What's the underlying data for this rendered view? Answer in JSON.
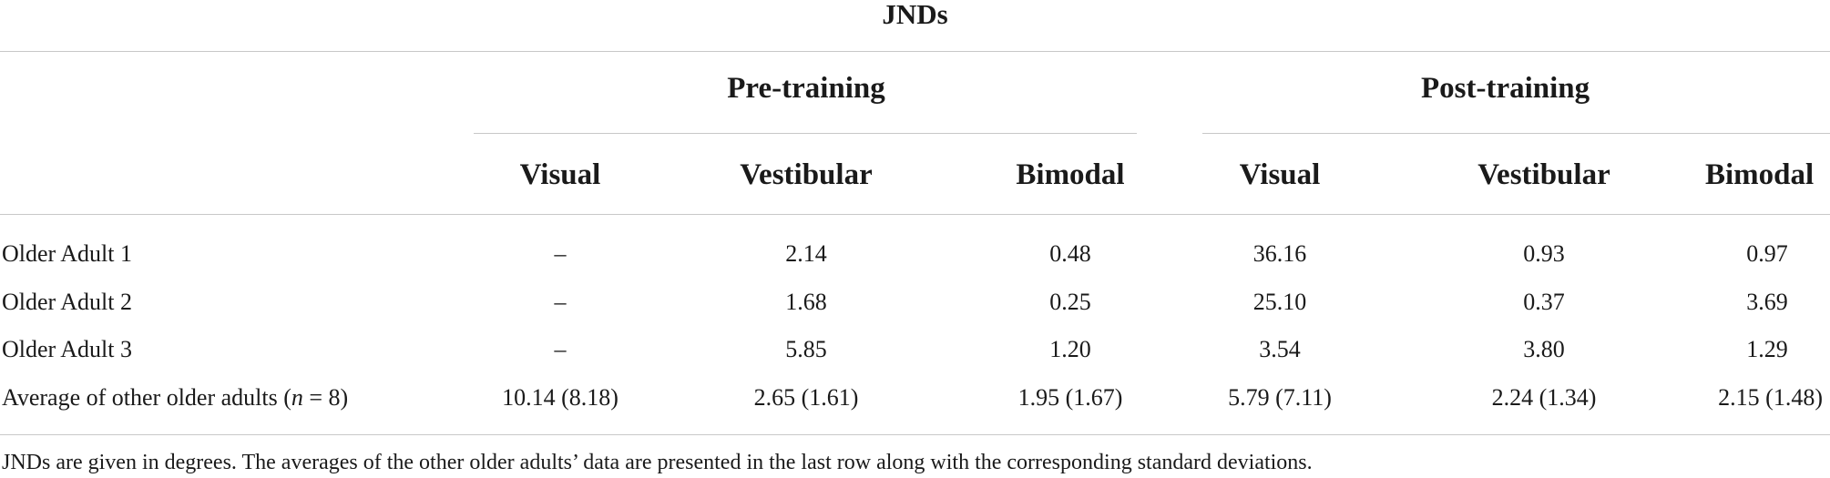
{
  "table": {
    "title": "JNDs",
    "groups": [
      "Pre-training",
      "Post-training"
    ],
    "columns": [
      "Visual",
      "Vestibular",
      "Bimodal",
      "Visual",
      "Vestibular",
      "Bimodal"
    ],
    "rows": [
      {
        "label": "Older Adult 1",
        "values": [
          "–",
          "2.14",
          "0.48",
          "36.16",
          "0.93",
          "0.97"
        ]
      },
      {
        "label": "Older Adult 2",
        "values": [
          "–",
          "1.68",
          "0.25",
          "25.10",
          "0.37",
          "3.69"
        ]
      },
      {
        "label": "Older Adult 3",
        "values": [
          "–",
          "5.85",
          "1.20",
          "3.54",
          "3.80",
          "1.29"
        ]
      },
      {
        "label_prefix": "Average of other older adults (",
        "label_n": "n",
        "label_suffix": " = 8)",
        "values": [
          "10.14 (8.18)",
          "2.65 (1.61)",
          "1.95 (1.67)",
          "5.79 (7.11)",
          "2.24 (1.34)",
          "2.15 (1.48)"
        ]
      }
    ],
    "footnote": "JNDs are given in degrees. The averages of the other older adults’ data are presented in the last row along with the corresponding standard deviations."
  }
}
